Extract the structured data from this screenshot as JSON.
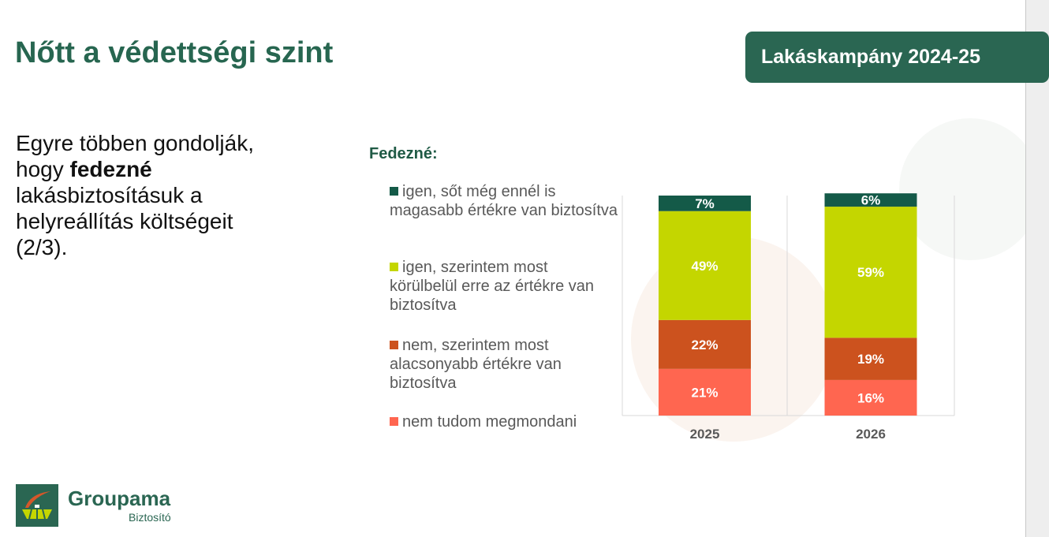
{
  "title": "Nőtt a védettségi szint",
  "badge": "Lakáskampány 2024-25",
  "body": {
    "part1": "Egyre többen gondolják, hogy ",
    "bold": "fedezné",
    "part2": " lakásbiztosításuk a helyreállítás költségeit (2/3)."
  },
  "logo": {
    "name": "Groupama",
    "sub": "Biztosító"
  },
  "chart_data": {
    "type": "bar",
    "stacked": true,
    "title": "Fedezné:",
    "categories": [
      "2025",
      "2026"
    ],
    "series": [
      {
        "name": "nem tudom megmondani",
        "color": "#ff6650",
        "values": [
          21,
          16
        ]
      },
      {
        "name": "nem, szerintem most alacsonyabb értékre van biztosítva",
        "color": "#cc521e",
        "values": [
          22,
          19
        ]
      },
      {
        "name": "igen, szerintem most körülbelül erre az értékre van biztosítva",
        "color": "#c4d600",
        "values": [
          49,
          59
        ]
      },
      {
        "name": "igen, sőt még ennél is magasabb értékre van biztosítva",
        "color": "#145a48",
        "values": [
          7,
          6
        ]
      }
    ],
    "ylim": [
      0,
      100
    ],
    "legend": "left",
    "grid": true
  }
}
